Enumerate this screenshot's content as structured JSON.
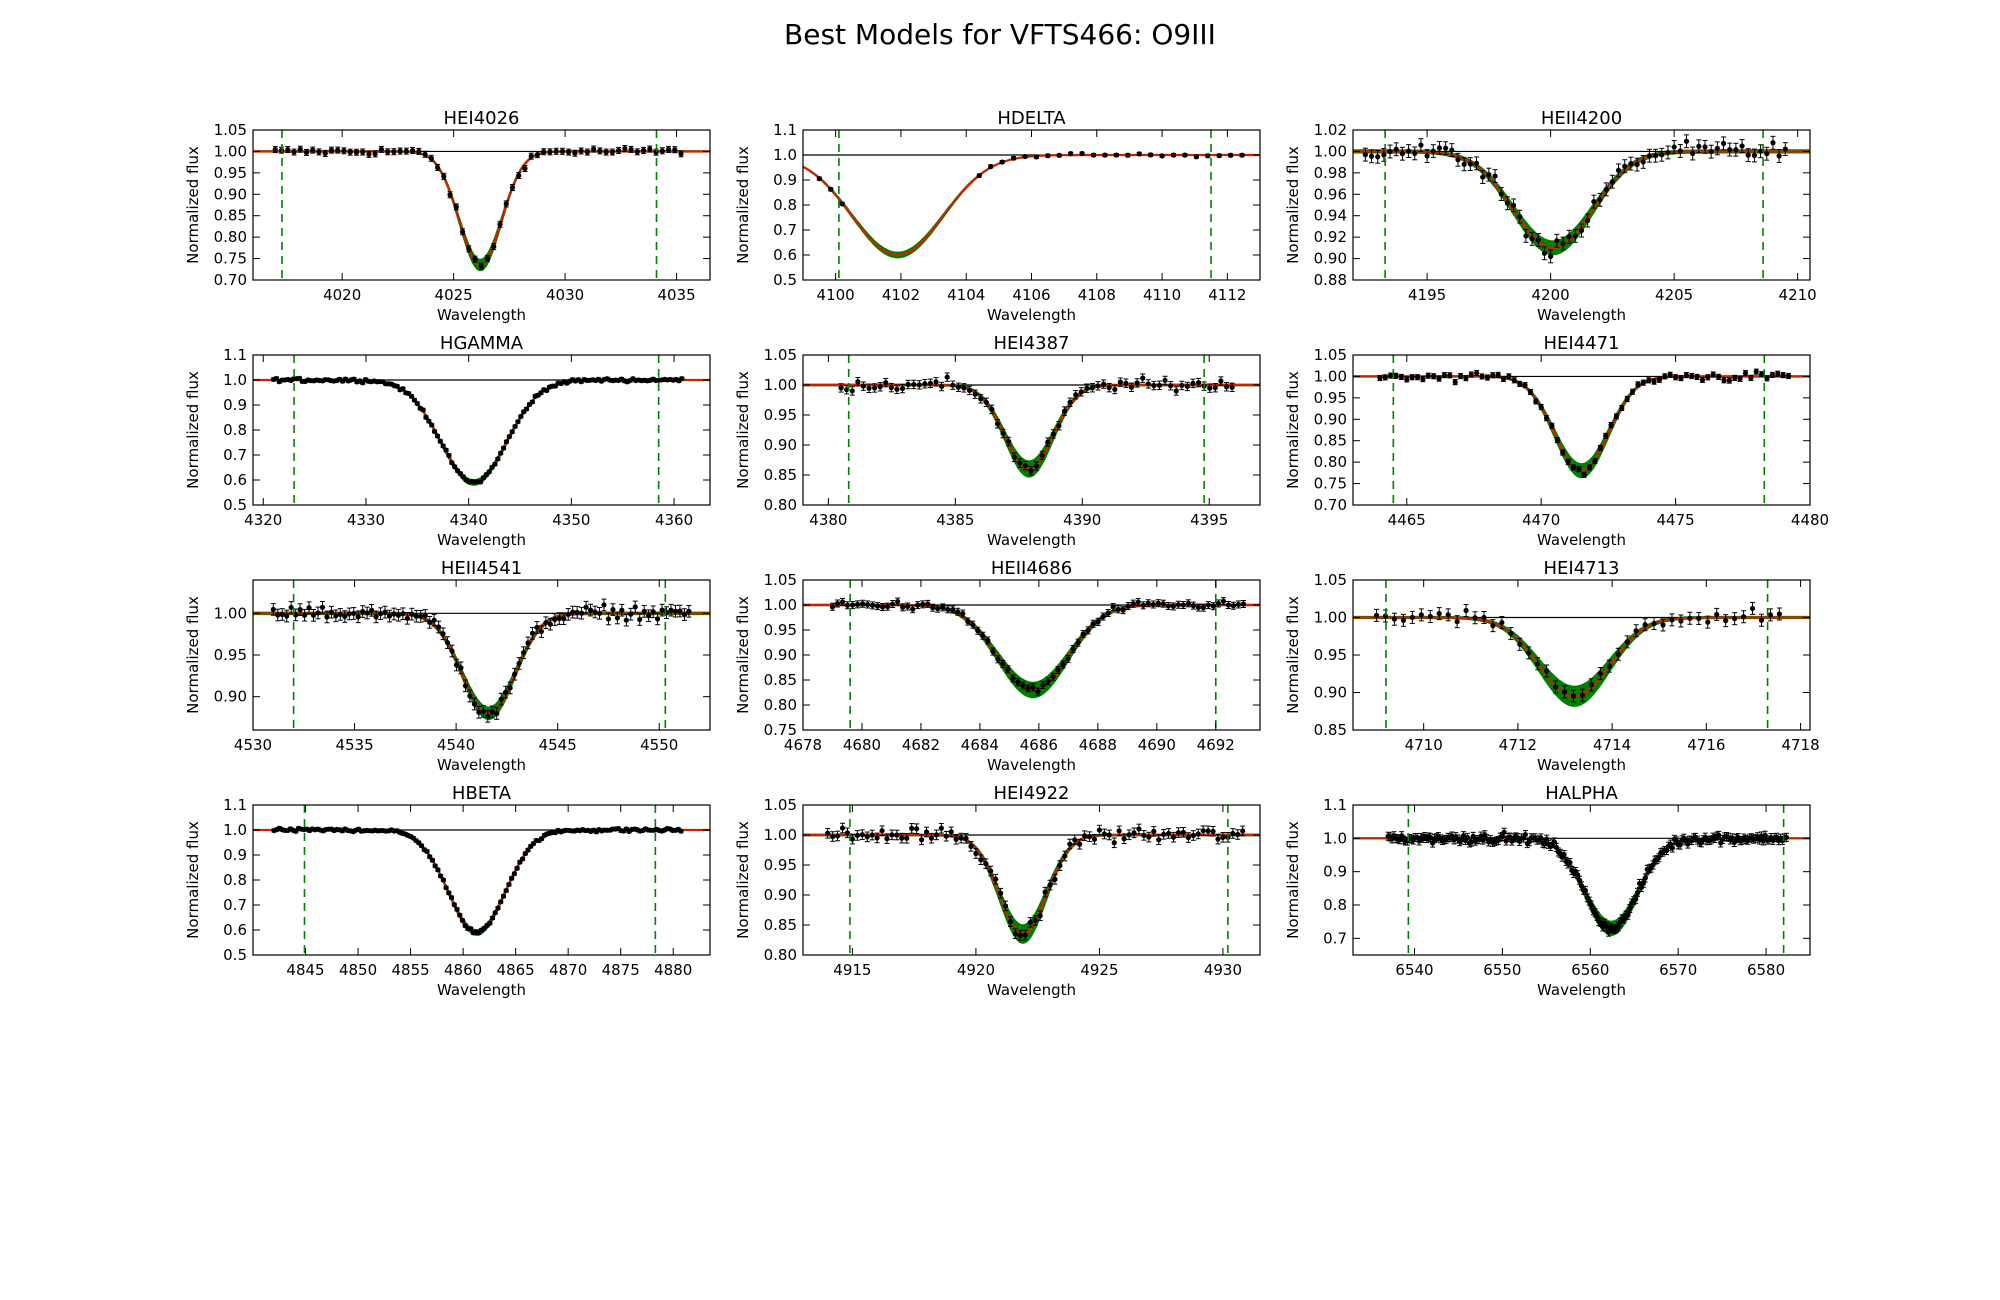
{
  "page": {
    "title": "Best Models for VFTS466: O9III"
  },
  "colors": {
    "observed": "#000000",
    "fit_band": "#008000",
    "best_fit": "#cc2200",
    "continuum": "#000000",
    "window_marker": "#008000"
  },
  "chart_data": [
    {
      "type": "line",
      "title": "HEI4026",
      "xlabel": "Wavelength",
      "ylabel": "Normalized flux",
      "xlim": [
        4016,
        4036.5
      ],
      "ylim": [
        0.7,
        1.05
      ],
      "xticks": [
        4020,
        4025,
        4030,
        4035
      ],
      "yticks": [
        0.7,
        0.75,
        0.8,
        0.85,
        0.9,
        0.95,
        1.0,
        1.05
      ],
      "ytick_labels": [
        "0.70",
        "0.75",
        "0.80",
        "0.85",
        "0.90",
        "0.95",
        "1.00",
        "1.05"
      ],
      "window": [
        4017.3,
        4034.1
      ],
      "line_center": 4026.2,
      "depth": 0.265,
      "width": 0.95,
      "band_halfwidth": 0.012,
      "obs_range": [
        4017,
        4035.3
      ],
      "obs_step": 0.28,
      "obs_noise": 0.008,
      "obs_err": 0.007
    },
    {
      "type": "line",
      "title": "HDELTA",
      "xlabel": "Wavelength",
      "ylabel": "Normalized flux",
      "xlim": [
        4099,
        4113
      ],
      "ylim": [
        0.5,
        1.1
      ],
      "xticks": [
        4100,
        4102,
        4104,
        4106,
        4108,
        4110,
        4112
      ],
      "yticks": [
        0.5,
        0.6,
        0.7,
        0.8,
        0.9,
        1.0,
        1.1
      ],
      "ytick_labels": [
        "0.5",
        "0.6",
        "0.7",
        "0.8",
        "0.9",
        "1.0",
        "1.1"
      ],
      "window": [
        4100.1,
        4111.5
      ],
      "line_center": 4101.9,
      "depth": 0.4,
      "width": 1.4,
      "band_halfwidth": 0.01,
      "obs_range": [
        4099.5,
        4112.6
      ],
      "obs_step": 0.35,
      "obs_noise": 0.006,
      "obs_err": 0.006,
      "obs_sparse": true
    },
    {
      "type": "line",
      "title": "HEII4200",
      "xlabel": "Wavelength",
      "ylabel": "Normalized flux",
      "xlim": [
        4192,
        4210.5
      ],
      "ylim": [
        0.88,
        1.02
      ],
      "xticks": [
        4195,
        4200,
        4205,
        4210
      ],
      "yticks": [
        0.88,
        0.9,
        0.92,
        0.94,
        0.96,
        0.98,
        1.0,
        1.02
      ],
      "ytick_labels": [
        "0.88",
        "0.90",
        "0.92",
        "0.94",
        "0.96",
        "0.98",
        "1.00",
        "1.02"
      ],
      "window": [
        4193.3,
        4208.6
      ],
      "line_center": 4200.1,
      "depth": 0.09,
      "width": 1.6,
      "band_halfwidth": 0.005,
      "obs_range": [
        4192.5,
        4209.6
      ],
      "obs_step": 0.25,
      "obs_noise": 0.008,
      "obs_err": 0.006
    },
    {
      "type": "line",
      "title": "HGAMMA",
      "xlabel": "Wavelength",
      "ylabel": "Normalized flux",
      "xlim": [
        4319,
        4363.5
      ],
      "ylim": [
        0.5,
        1.1
      ],
      "xticks": [
        4320,
        4330,
        4340,
        4350,
        4360
      ],
      "yticks": [
        0.5,
        0.6,
        0.7,
        0.8,
        0.9,
        1.0,
        1.1
      ],
      "ytick_labels": [
        "0.5",
        "0.6",
        "0.7",
        "0.8",
        "0.9",
        "1.0",
        "1.1"
      ],
      "window": [
        4323.0,
        4358.5
      ],
      "line_center": 4340.5,
      "depth": 0.41,
      "width": 3.2,
      "band_halfwidth": 0.01,
      "obs_range": [
        4321,
        4361
      ],
      "obs_step": 0.28,
      "obs_noise": 0.006,
      "obs_err": 0.006
    },
    {
      "type": "line",
      "title": "HEI4387",
      "xlabel": "Wavelength",
      "ylabel": "Normalized flux",
      "xlim": [
        4379,
        4397
      ],
      "ylim": [
        0.8,
        1.05
      ],
      "xticks": [
        4380,
        4385,
        4390,
        4395
      ],
      "yticks": [
        0.8,
        0.85,
        0.9,
        0.95,
        1.0,
        1.05
      ],
      "ytick_labels": [
        "0.80",
        "0.85",
        "0.90",
        "0.95",
        "1.00",
        "1.05"
      ],
      "window": [
        4380.8,
        4394.8
      ],
      "line_center": 4387.9,
      "depth": 0.14,
      "width": 0.95,
      "band_halfwidth": 0.012,
      "obs_range": [
        4380.5,
        4396
      ],
      "obs_step": 0.22,
      "obs_noise": 0.009,
      "obs_err": 0.007
    },
    {
      "type": "line",
      "title": "HEI4471",
      "xlabel": "Wavelength",
      "ylabel": "Normalized flux",
      "xlim": [
        4463,
        4480
      ],
      "ylim": [
        0.7,
        1.05
      ],
      "xticks": [
        4465,
        4470,
        4475,
        4480
      ],
      "yticks": [
        0.7,
        0.75,
        0.8,
        0.85,
        0.9,
        0.95,
        1.0,
        1.05
      ],
      "ytick_labels": [
        "0.70",
        "0.75",
        "0.80",
        "0.85",
        "0.90",
        "0.95",
        "1.00",
        "1.05"
      ],
      "window": [
        4464.5,
        4478.3
      ],
      "line_center": 4471.5,
      "depth": 0.22,
      "width": 1.0,
      "band_halfwidth": 0.015,
      "obs_range": [
        4464,
        4479.2
      ],
      "obs_step": 0.2,
      "obs_noise": 0.01,
      "obs_err": 0.006
    },
    {
      "type": "line",
      "title": "HEII4541",
      "xlabel": "Wavelength",
      "ylabel": "Normalized flux",
      "xlim": [
        4530,
        4552.5
      ],
      "ylim": [
        0.86,
        1.04
      ],
      "xticks": [
        4530,
        4535,
        4540,
        4545,
        4550
      ],
      "yticks": [
        0.9,
        0.95,
        1.0
      ],
      "ytick_labels": [
        "0.90",
        "0.95",
        "1.00"
      ],
      "window": [
        4532.0,
        4550.3
      ],
      "line_center": 4541.6,
      "depth": 0.12,
      "width": 1.3,
      "band_halfwidth": 0.006,
      "obs_range": [
        4531,
        4551.5
      ],
      "obs_step": 0.22,
      "obs_noise": 0.008,
      "obs_err": 0.007
    },
    {
      "type": "line",
      "title": "HEII4686",
      "xlabel": "Wavelength",
      "ylabel": "Normalized flux",
      "xlim": [
        4678,
        4693.5
      ],
      "ylim": [
        0.75,
        1.05
      ],
      "xticks": [
        4678,
        4680,
        4682,
        4684,
        4686,
        4688,
        4690,
        4692
      ],
      "yticks": [
        0.75,
        0.8,
        0.85,
        0.9,
        0.95,
        1.0,
        1.05
      ],
      "ytick_labels": [
        "0.75",
        "0.80",
        "0.85",
        "0.90",
        "0.95",
        "1.00",
        "1.05"
      ],
      "window": [
        4679.6,
        4692.0
      ],
      "line_center": 4685.8,
      "depth": 0.17,
      "width": 1.2,
      "band_halfwidth": 0.014,
      "obs_range": [
        4679,
        4693
      ],
      "obs_step": 0.17,
      "obs_noise": 0.007,
      "obs_err": 0.007
    },
    {
      "type": "line",
      "title": "HEI4713",
      "xlabel": "Wavelength",
      "ylabel": "Normalized flux",
      "xlim": [
        4708.5,
        4718.2
      ],
      "ylim": [
        0.85,
        1.05
      ],
      "xticks": [
        4710,
        4712,
        4714,
        4716,
        4718
      ],
      "yticks": [
        0.85,
        0.9,
        0.95,
        1.0,
        1.05
      ],
      "ytick_labels": [
        "0.85",
        "0.90",
        "0.95",
        "1.00",
        "1.05"
      ],
      "window": [
        4709.2,
        4717.3
      ],
      "line_center": 4713.2,
      "depth": 0.105,
      "width": 0.75,
      "band_halfwidth": 0.012,
      "obs_range": [
        4709,
        4717.6
      ],
      "obs_step": 0.19,
      "obs_noise": 0.008,
      "obs_err": 0.008
    },
    {
      "type": "line",
      "title": "HBETA",
      "xlabel": "Wavelength",
      "ylabel": "Normalized flux",
      "xlim": [
        4840,
        4883.5
      ],
      "ylim": [
        0.5,
        1.1
      ],
      "xticks": [
        4845,
        4850,
        4855,
        4860,
        4865,
        4870,
        4875,
        4880
      ],
      "yticks": [
        0.5,
        0.6,
        0.7,
        0.8,
        0.9,
        1.0,
        1.1
      ],
      "ytick_labels": [
        "0.5",
        "0.6",
        "0.7",
        "0.8",
        "0.9",
        "1.0",
        "1.1"
      ],
      "window": [
        4844.9,
        4878.3
      ],
      "line_center": 4861.3,
      "depth": 0.41,
      "width": 2.7,
      "band_halfwidth": 0.01,
      "obs_range": [
        4842,
        4881
      ],
      "obs_step": 0.26,
      "obs_noise": 0.006,
      "obs_err": 0.006
    },
    {
      "type": "line",
      "title": "HEI4922",
      "xlabel": "Wavelength",
      "ylabel": "Normalized flux",
      "xlim": [
        4913,
        4931.5
      ],
      "ylim": [
        0.8,
        1.05
      ],
      "xticks": [
        4915,
        4920,
        4925,
        4930
      ],
      "yticks": [
        0.8,
        0.85,
        0.9,
        0.95,
        1.0,
        1.05
      ],
      "ytick_labels": [
        "0.80",
        "0.85",
        "0.90",
        "0.95",
        "1.00",
        "1.05"
      ],
      "window": [
        4914.9,
        4930.2
      ],
      "line_center": 4921.9,
      "depth": 0.165,
      "width": 0.95,
      "band_halfwidth": 0.014,
      "obs_range": [
        4914,
        4930.8
      ],
      "obs_step": 0.2,
      "obs_noise": 0.011,
      "obs_err": 0.008
    },
    {
      "type": "line",
      "title": "HALPHA",
      "xlabel": "Wavelength",
      "ylabel": "Normalized flux",
      "xlim": [
        6533,
        6585
      ],
      "ylim": [
        0.65,
        1.1
      ],
      "xticks": [
        6540,
        6550,
        6560,
        6570,
        6580
      ],
      "yticks": [
        0.7,
        0.8,
        0.9,
        1.0,
        1.1
      ],
      "ytick_labels": [
        "0.7",
        "0.8",
        "0.9",
        "1.0",
        "1.1"
      ],
      "window": [
        6539.3,
        6582.0
      ],
      "line_center": 6562.4,
      "depth": 0.27,
      "width": 3.0,
      "band_halfwidth": 0.02,
      "obs_range": [
        6537,
        6582.5
      ],
      "obs_step": 0.22,
      "obs_noise": 0.012,
      "obs_err": 0.012
    }
  ]
}
